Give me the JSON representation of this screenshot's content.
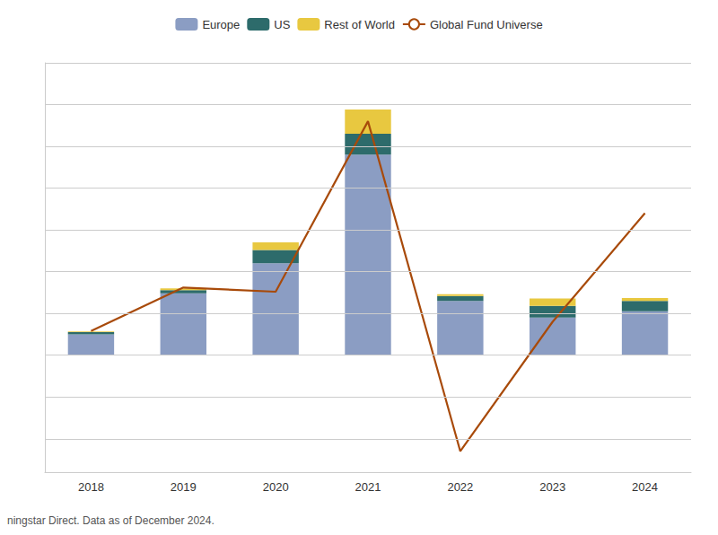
{
  "chart_data": {
    "type": "bar",
    "categories": [
      "2018",
      "2019",
      "2020",
      "2021",
      "2022",
      "2023",
      "2024"
    ],
    "series": [
      {
        "name": "Europe",
        "type": "bar",
        "color": "#8b9dc3",
        "values": [
          50,
          148,
          220,
          480,
          130,
          90,
          105
        ]
      },
      {
        "name": "US",
        "type": "bar",
        "color": "#2d6b6b",
        "values": [
          5,
          8,
          32,
          50,
          12,
          28,
          25
        ]
      },
      {
        "name": "Rest of World",
        "type": "bar",
        "color": "#e8c840",
        "values": [
          2,
          4,
          18,
          58,
          4,
          18,
          7
        ]
      },
      {
        "name": "Global Fund Universe",
        "type": "line",
        "color": "#a84a0a",
        "values": [
          58,
          162,
          152,
          560,
          -230,
          80,
          340
        ]
      }
    ],
    "stacked": true,
    "ylim": [
      -280,
      700
    ],
    "yticks": [
      -200,
      -100,
      0,
      100,
      200,
      300,
      400,
      500,
      600,
      700
    ],
    "grid": true,
    "legend": "top",
    "tick_labels": "x",
    "annotations": [
      "ningstar Direct. Data as of December 2024."
    ]
  }
}
